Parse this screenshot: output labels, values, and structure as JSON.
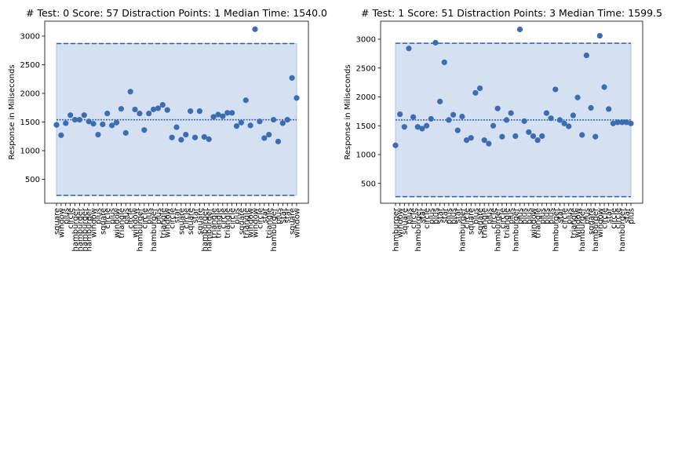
{
  "chart_data": [
    {
      "type": "scatter",
      "title": "# Test: 0 Score: 57 Distraction Points: 1 Median Time: 1540.0",
      "xlabel": "",
      "ylabel": "Response in Miliseconds",
      "ylim": [
        0,
        3200
      ],
      "yticks": [
        500,
        1000,
        1500,
        2000,
        2500,
        3000
      ],
      "band": {
        "lower": 220,
        "upper": 2870
      },
      "median": 1540,
      "categories": [
        "square",
        "window",
        "plus",
        "circle",
        "hamburger",
        "hamburger",
        "hamburger",
        "hamburger",
        "window",
        "plus",
        "square",
        "circle",
        "plus",
        "window",
        "triangle",
        "plus",
        "circle",
        "window",
        "hamburger",
        "circle",
        "plus",
        "hamburger",
        "plus",
        "triangle",
        "window",
        "circle",
        "star",
        "square",
        "circle",
        "square",
        "star",
        "square",
        "hamburger",
        "hamburger",
        "triangle",
        "triangle",
        "circle",
        "triangle",
        "circle",
        "plus",
        "square",
        "triangle",
        "window",
        "window",
        "circle",
        "star",
        "triangle",
        "hamburger",
        "plus",
        "star",
        "star",
        "square",
        "window"
      ],
      "values": [
        1450,
        1270,
        1480,
        1620,
        1540,
        1540,
        1620,
        1510,
        1470,
        1280,
        1460,
        1650,
        1440,
        1490,
        1730,
        1310,
        2030,
        1720,
        1650,
        1360,
        1650,
        1720,
        1740,
        1800,
        1710,
        1230,
        1410,
        1190,
        1280,
        1690,
        1230,
        1690,
        1240,
        1200,
        1590,
        1630,
        1600,
        1660,
        1660,
        1430,
        1490,
        1880,
        1440,
        3120,
        1510,
        1220,
        1280,
        1540,
        1160,
        1480,
        1540,
        2270,
        1920
      ]
    },
    {
      "type": "scatter",
      "title": "# Test: 1 Score: 51 Distraction Points: 3 Median Time: 1599.5",
      "xlabel": "",
      "ylabel": "Response in Miliseconds",
      "ylim": [
        0,
        3200
      ],
      "yticks": [
        500,
        1000,
        1500,
        2000,
        2500,
        3000
      ],
      "band": {
        "lower": 270,
        "upper": 2930
      },
      "median": 1600,
      "categories": [
        "hamburger",
        "window",
        "square",
        "plus",
        "circle",
        "hamburger",
        "star",
        "circle",
        "plus",
        "plus",
        "star",
        "star",
        "plus",
        "plus",
        "star",
        "hamburger",
        "circle",
        "square",
        "plus",
        "square",
        "triangle",
        "plus",
        "circle",
        "hamburger",
        "circle",
        "triangle",
        "plus",
        "hamburger",
        "plus",
        "plus",
        "plus",
        "window",
        "triangle",
        "plus",
        "plus",
        "plus",
        "hamburger",
        "star",
        "circle",
        "plus",
        "triangle",
        "window",
        "hamburger",
        "plus",
        "square",
        "hamburger",
        "window",
        "circle",
        "star",
        "circle",
        "circle",
        "hamburger",
        "star",
        "plus"
      ],
      "values": [
        1160,
        1700,
        1480,
        2840,
        1650,
        1480,
        1450,
        1500,
        1620,
        2940,
        1920,
        2600,
        1600,
        1690,
        1420,
        1660,
        1250,
        1290,
        2070,
        2150,
        1250,
        1190,
        1500,
        1800,
        1310,
        1600,
        1720,
        1320,
        3170,
        1580,
        1390,
        1320,
        1250,
        1320,
        1720,
        1630,
        2130,
        1600,
        1540,
        1490,
        1680,
        1990,
        1340,
        2720,
        1810,
        1310,
        3060,
        2170,
        1790,
        1540,
        1560,
        1560,
        1560,
        1540
      ]
    }
  ]
}
